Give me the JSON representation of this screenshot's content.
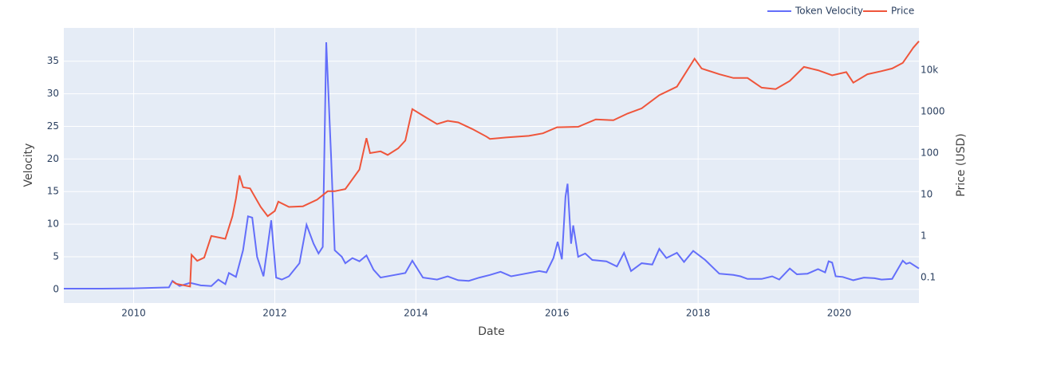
{
  "chart_data": {
    "type": "line",
    "x_label": "Date",
    "y_label": "Velocity",
    "y2_label": "Price (USD)",
    "xlim": [
      2009.01,
      2021.13
    ],
    "xticks": [
      2010,
      2012,
      2014,
      2016,
      2018,
      2020
    ],
    "ylim": [
      -2.1,
      40.1
    ],
    "yticks": [
      0,
      5,
      10,
      15,
      20,
      25,
      30,
      35
    ],
    "y2lim": [
      0.024,
      105000
    ],
    "y2_log": true,
    "y2ticks": [
      0.1,
      1,
      10,
      100,
      1000,
      {
        "value": 10000,
        "label": "10k"
      }
    ],
    "grid": true,
    "legend_position": "top-right",
    "series": [
      {
        "name": "Token Velocity",
        "color": "#636efa",
        "axis": "y",
        "x": [
          2009.01,
          2009.5,
          2010.0,
          2010.5,
          2010.55,
          2010.65,
          2010.8,
          2010.95,
          2011.1,
          2011.2,
          2011.3,
          2011.35,
          2011.45,
          2011.55,
          2011.62,
          2011.68,
          2011.75,
          2011.84,
          2011.95,
          2012.02,
          2012.1,
          2012.2,
          2012.35,
          2012.45,
          2012.55,
          2012.62,
          2012.68,
          2012.73,
          2012.8,
          2012.85,
          2012.95,
          2013.0,
          2013.1,
          2013.2,
          2013.3,
          2013.4,
          2013.5,
          2013.7,
          2013.85,
          2013.95,
          2014.1,
          2014.3,
          2014.45,
          2014.6,
          2014.75,
          2014.9,
          2015.05,
          2015.2,
          2015.35,
          2015.55,
          2015.75,
          2015.85,
          2015.95,
          2016.01,
          2016.07,
          2016.12,
          2016.15,
          2016.2,
          2016.23,
          2016.3,
          2016.4,
          2016.5,
          2016.7,
          2016.85,
          2016.95,
          2017.05,
          2017.2,
          2017.35,
          2017.45,
          2017.55,
          2017.7,
          2017.8,
          2017.93,
          2018.1,
          2018.3,
          2018.5,
          2018.6,
          2018.7,
          2018.9,
          2019.05,
          2019.15,
          2019.3,
          2019.4,
          2019.55,
          2019.7,
          2019.8,
          2019.85,
          2019.9,
          2019.95,
          2020.05,
          2020.2,
          2020.35,
          2020.5,
          2020.6,
          2020.75,
          2020.9,
          2020.95,
          2021.0,
          2021.13
        ],
        "values": [
          0.1,
          0.1,
          0.15,
          0.3,
          1.3,
          0.5,
          1.0,
          0.6,
          0.5,
          1.5,
          0.8,
          2.5,
          1.9,
          6,
          11.2,
          11,
          5,
          2.0,
          10.6,
          1.8,
          1.5,
          2,
          4,
          9.9,
          7,
          5.5,
          6.5,
          37.9,
          20,
          6,
          5,
          4,
          4.8,
          4.3,
          5.2,
          3,
          1.8,
          2.2,
          2.5,
          4.4,
          1.8,
          1.5,
          2.0,
          1.4,
          1.3,
          1.8,
          2.2,
          2.7,
          2.0,
          2.4,
          2.8,
          2.6,
          4.8,
          7.3,
          4.6,
          14.2,
          16.2,
          7,
          9.8,
          5,
          5.5,
          4.5,
          4.3,
          3.5,
          5.6,
          2.8,
          4,
          3.8,
          6.2,
          4.8,
          5.6,
          4.2,
          5.9,
          4.5,
          2.4,
          2.2,
          2.0,
          1.6,
          1.6,
          2.0,
          1.5,
          3.2,
          2.3,
          2.4,
          3.1,
          2.6,
          4.3,
          4.1,
          2.0,
          1.9,
          1.4,
          1.8,
          1.7,
          1.5,
          1.6,
          4.4,
          3.9,
          4.1,
          3.2
        ]
      },
      {
        "name": "Price",
        "color": "#ef553b",
        "axis": "y2",
        "x": [
          2010.55,
          2010.6,
          2010.8,
          2010.82,
          2010.9,
          2011.0,
          2011.1,
          2011.3,
          2011.4,
          2011.45,
          2011.5,
          2011.55,
          2011.65,
          2011.8,
          2011.9,
          2012.0,
          2012.05,
          2012.2,
          2012.4,
          2012.6,
          2012.75,
          2012.85,
          2013.0,
          2013.2,
          2013.3,
          2013.35,
          2013.5,
          2013.6,
          2013.75,
          2013.85,
          2013.95,
          2014.1,
          2014.3,
          2014.45,
          2014.6,
          2014.8,
          2015.0,
          2015.05,
          2015.3,
          2015.6,
          2015.8,
          2016.0,
          2016.3,
          2016.55,
          2016.8,
          2017.0,
          2017.2,
          2017.45,
          2017.7,
          2017.95,
          2018.05,
          2018.3,
          2018.5,
          2018.7,
          2018.9,
          2019.1,
          2019.3,
          2019.5,
          2019.7,
          2019.9,
          2020.1,
          2020.2,
          2020.4,
          2020.6,
          2020.75,
          2020.9,
          2021.05,
          2021.13
        ],
        "values": [
          0.08,
          0.07,
          0.06,
          0.35,
          0.25,
          0.3,
          1,
          0.85,
          3,
          8,
          29,
          15,
          14,
          5,
          3,
          4,
          6.7,
          5,
          5.2,
          7.5,
          12,
          12,
          13.5,
          40,
          230,
          100,
          110,
          90,
          130,
          200,
          1150,
          800,
          500,
          600,
          550,
          380,
          250,
          220,
          240,
          260,
          300,
          420,
          430,
          650,
          620,
          900,
          1200,
          2500,
          4000,
          19000,
          11000,
          8000,
          6500,
          6500,
          3800,
          3500,
          5500,
          12000,
          10000,
          7500,
          9000,
          5000,
          8000,
          9500,
          11000,
          15000,
          35000,
          50000
        ]
      }
    ]
  }
}
